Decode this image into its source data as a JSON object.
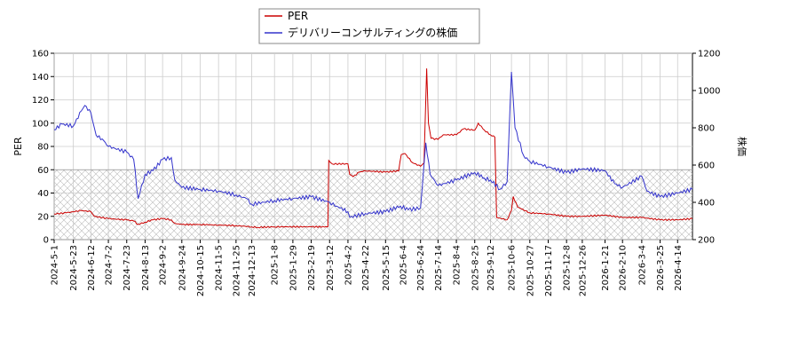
{
  "chart_data": {
    "type": "line",
    "legend": {
      "placement": "top-center",
      "entries": [
        {
          "label": "PER",
          "color": "#cc0000"
        },
        {
          "label": "デリバリーコンサルティングの株価",
          "color": "#3333cc"
        }
      ]
    },
    "ylabel_left": "PER",
    "ylabel_right": "株価",
    "ylim_left": [
      0,
      160
    ],
    "ylim_right": [
      200,
      1200
    ],
    "yticks_left": [
      "0",
      "20",
      "40",
      "60",
      "80",
      "100",
      "120",
      "140",
      "160"
    ],
    "yticks_right": [
      "200",
      "400",
      "600",
      "800",
      "1000",
      "1200"
    ],
    "xlim": [
      "2024-05-01",
      "2026-05-01"
    ],
    "x_tick_labels": [
      "2024-5-1",
      "2024-5-23",
      "2024-6-12",
      "2024-7-2",
      "2024-7-23",
      "2024-8-13",
      "2024-9-2",
      "2024-9-24",
      "2024-10-15",
      "2024-11-5",
      "2024-11-25",
      "2024-12-13",
      "2025-1-8",
      "2025-1-29",
      "2025-2-19",
      "2025-3-12",
      "2025-4-2",
      "2025-4-22",
      "2025-5-15",
      "2025-6-4",
      "2025-6-24",
      "2025-7-14",
      "2025-8-4",
      "2025-8-25",
      "2025-9-12",
      "2025-10-6",
      "2025-10-27",
      "2025-11-17",
      "2025-12-8",
      "2025-12-26",
      "2026-1-21",
      "2026-2-10",
      "2026-3-4",
      "2026-3-25",
      "2026-4-14"
    ],
    "grid": true,
    "hatched_band_left": [
      0,
      60
    ],
    "series": [
      {
        "name": "PER",
        "axis": "left",
        "color": "#cc0000",
        "points": [
          [
            "2024-05-01",
            22
          ],
          [
            "2024-05-15",
            23
          ],
          [
            "2024-06-01",
            25
          ],
          [
            "2024-06-12",
            24
          ],
          [
            "2024-06-16",
            20
          ],
          [
            "2024-07-02",
            18
          ],
          [
            "2024-07-23",
            17
          ],
          [
            "2024-07-31",
            16
          ],
          [
            "2024-08-05",
            13
          ],
          [
            "2024-08-13",
            15
          ],
          [
            "2024-08-22",
            17
          ],
          [
            "2024-09-02",
            18
          ],
          [
            "2024-09-12",
            17
          ],
          [
            "2024-09-16",
            14
          ],
          [
            "2024-09-24",
            13
          ],
          [
            "2024-10-15",
            13
          ],
          [
            "2024-11-05",
            12.5
          ],
          [
            "2024-11-25",
            12
          ],
          [
            "2024-12-13",
            11
          ],
          [
            "2024-12-20",
            10.5
          ],
          [
            "2025-01-08",
            11
          ],
          [
            "2025-02-19",
            11
          ],
          [
            "2025-03-10",
            11
          ],
          [
            "2025-03-11",
            68
          ],
          [
            "2025-03-15",
            65
          ],
          [
            "2025-04-02",
            65
          ],
          [
            "2025-04-04",
            56
          ],
          [
            "2025-04-08",
            54
          ],
          [
            "2025-04-15",
            58
          ],
          [
            "2025-04-22",
            59
          ],
          [
            "2025-05-15",
            58
          ],
          [
            "2025-05-30",
            59
          ],
          [
            "2025-06-02",
            73
          ],
          [
            "2025-06-06",
            74
          ],
          [
            "2025-06-15",
            66
          ],
          [
            "2025-06-24",
            63
          ],
          [
            "2025-06-28",
            66
          ],
          [
            "2025-07-01",
            147
          ],
          [
            "2025-07-03",
            100
          ],
          [
            "2025-07-06",
            87
          ],
          [
            "2025-07-14",
            86
          ],
          [
            "2025-07-20",
            90
          ],
          [
            "2025-08-04",
            90
          ],
          [
            "2025-08-12",
            95
          ],
          [
            "2025-08-25",
            94
          ],
          [
            "2025-08-29",
            100
          ],
          [
            "2025-09-05",
            94
          ],
          [
            "2025-09-12",
            90
          ],
          [
            "2025-09-17",
            88
          ],
          [
            "2025-09-19",
            19
          ],
          [
            "2025-10-01",
            17
          ],
          [
            "2025-10-06",
            25
          ],
          [
            "2025-10-08",
            37
          ],
          [
            "2025-10-13",
            28
          ],
          [
            "2025-10-27",
            23
          ],
          [
            "2025-11-17",
            22
          ],
          [
            "2025-12-08",
            20
          ],
          [
            "2025-12-26",
            20
          ],
          [
            "2026-01-21",
            21
          ],
          [
            "2026-02-10",
            19
          ],
          [
            "2026-03-04",
            19
          ],
          [
            "2026-03-25",
            17
          ],
          [
            "2026-04-14",
            17
          ],
          [
            "2026-05-01",
            18
          ]
        ]
      },
      {
        "name": "デリバリーコンサルティングの株価",
        "axis": "right",
        "color": "#3333cc",
        "points": [
          [
            "2024-05-01",
            790
          ],
          [
            "2024-05-10",
            820
          ],
          [
            "2024-05-23",
            810
          ],
          [
            "2024-06-01",
            890
          ],
          [
            "2024-06-05",
            920
          ],
          [
            "2024-06-12",
            880
          ],
          [
            "2024-06-18",
            760
          ],
          [
            "2024-06-25",
            740
          ],
          [
            "2024-07-02",
            700
          ],
          [
            "2024-07-23",
            670
          ],
          [
            "2024-07-31",
            630
          ],
          [
            "2024-08-05",
            420
          ],
          [
            "2024-08-13",
            550
          ],
          [
            "2024-08-22",
            570
          ],
          [
            "2024-09-02",
            630
          ],
          [
            "2024-09-12",
            640
          ],
          [
            "2024-09-16",
            520
          ],
          [
            "2024-09-24",
            480
          ],
          [
            "2024-10-15",
            470
          ],
          [
            "2024-11-05",
            460
          ],
          [
            "2024-11-25",
            440
          ],
          [
            "2024-12-07",
            420
          ],
          [
            "2024-12-13",
            390
          ],
          [
            "2025-01-08",
            410
          ],
          [
            "2025-01-29",
            420
          ],
          [
            "2025-02-19",
            430
          ],
          [
            "2025-03-12",
            400
          ],
          [
            "2025-03-20",
            380
          ],
          [
            "2025-04-02",
            350
          ],
          [
            "2025-04-04",
            320
          ],
          [
            "2025-04-22",
            340
          ],
          [
            "2025-05-15",
            350
          ],
          [
            "2025-06-01",
            380
          ],
          [
            "2025-06-10",
            360
          ],
          [
            "2025-06-24",
            370
          ],
          [
            "2025-06-30",
            720
          ],
          [
            "2025-07-05",
            550
          ],
          [
            "2025-07-14",
            490
          ],
          [
            "2025-08-04",
            520
          ],
          [
            "2025-08-25",
            560
          ],
          [
            "2025-09-05",
            530
          ],
          [
            "2025-09-12",
            520
          ],
          [
            "2025-09-23",
            470
          ],
          [
            "2025-10-01",
            510
          ],
          [
            "2025-10-06",
            1100
          ],
          [
            "2025-10-10",
            800
          ],
          [
            "2025-10-20",
            650
          ],
          [
            "2025-10-27",
            620
          ],
          [
            "2025-11-17",
            590
          ],
          [
            "2025-12-08",
            560
          ],
          [
            "2025-12-26",
            580
          ],
          [
            "2026-01-21",
            570
          ],
          [
            "2026-02-01",
            500
          ],
          [
            "2026-02-10",
            480
          ],
          [
            "2026-03-04",
            540
          ],
          [
            "2026-03-10",
            460
          ],
          [
            "2026-03-25",
            430
          ],
          [
            "2026-04-14",
            450
          ],
          [
            "2026-05-01",
            470
          ]
        ]
      }
    ]
  }
}
